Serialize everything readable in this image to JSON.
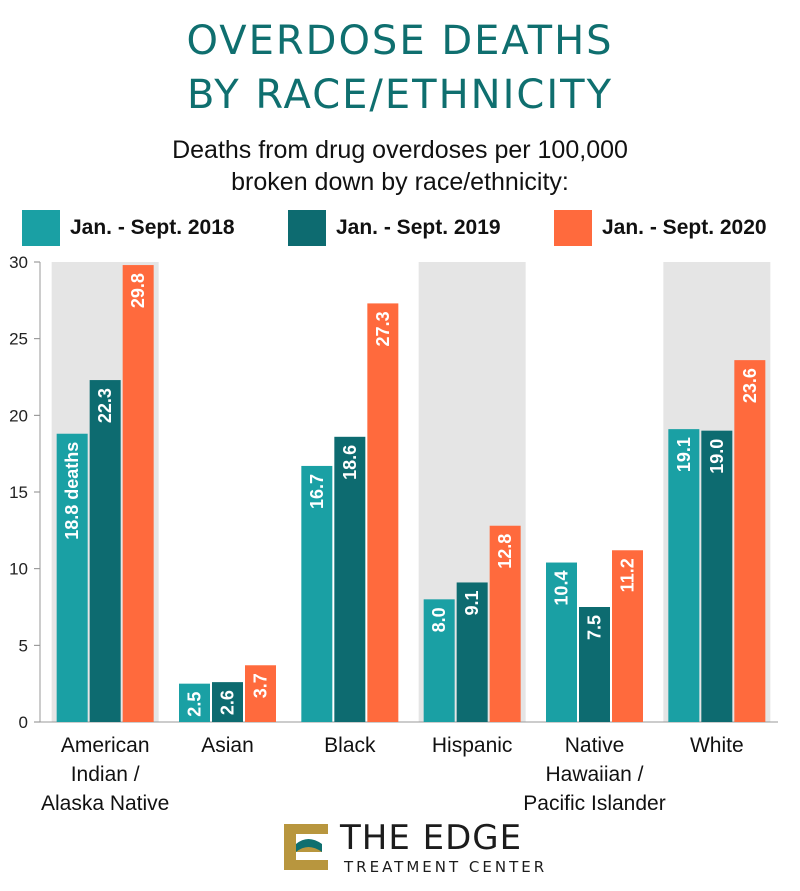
{
  "title_lines": [
    "OVERDOSE DEATHS",
    "BY RACE/ETHNICITY"
  ],
  "subtitle_lines": [
    "Deaths from drug overdoses per 100,000",
    "broken down by race/ethnicity:"
  ],
  "colors": {
    "series_2018": "#1aa0a4",
    "series_2019": "#0d6b70",
    "series_2020": "#ff6a3d",
    "shade": "#e5e5e5",
    "title": "#0f6f6f",
    "logo_gold": "#b8963e"
  },
  "chart_data": {
    "type": "bar",
    "title": "Deaths from drug overdoses per 100,000",
    "xlabel": "",
    "ylabel": "",
    "ylim": [
      0,
      30
    ],
    "yticks": [
      0,
      5,
      10,
      15,
      20,
      25,
      30
    ],
    "grid": false,
    "categories": [
      [
        "American",
        "Indian /",
        "Alaska Native"
      ],
      [
        "Asian"
      ],
      [
        "Black"
      ],
      [
        "Hispanic"
      ],
      [
        "Native",
        "Hawaiian /",
        "Pacific Islander"
      ],
      [
        "White"
      ]
    ],
    "shaded_categories": [
      0,
      3,
      5
    ],
    "series": [
      {
        "name": "Jan. - Sept. 2018",
        "values": [
          18.8,
          2.5,
          16.7,
          8.0,
          10.4,
          19.1
        ],
        "labels": [
          "18.8 deaths",
          "2.5",
          "16.7",
          "8.0",
          "10.4",
          "19.1"
        ]
      },
      {
        "name": "Jan. - Sept. 2019",
        "values": [
          22.3,
          2.6,
          18.6,
          9.1,
          7.5,
          19.0
        ],
        "labels": [
          "22.3",
          "2.6",
          "18.6",
          "9.1",
          "7.5",
          "19.0"
        ]
      },
      {
        "name": "Jan. - Sept. 2020",
        "values": [
          29.8,
          3.7,
          27.3,
          12.8,
          11.2,
          23.6
        ],
        "labels": [
          "29.8",
          "3.7",
          "27.3",
          "12.8",
          "11.2",
          "23.6"
        ]
      }
    ]
  },
  "logo": {
    "name": "THE EDGE",
    "tagline": "TREATMENT CENTER"
  }
}
